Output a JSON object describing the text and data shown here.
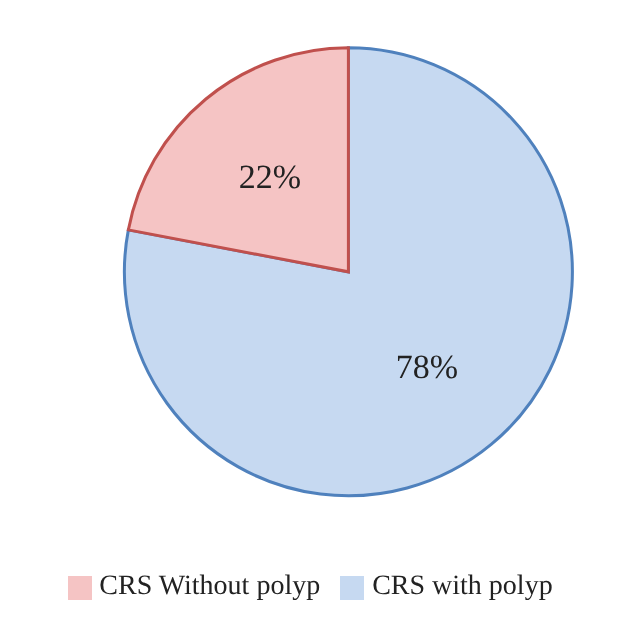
{
  "chart_data": {
    "type": "pie",
    "categories": [
      "CRS with polyp",
      "CRS Without polyp"
    ],
    "values": [
      78,
      22
    ],
    "colors": [
      "#c6d9f1",
      "#f5c4c4"
    ],
    "value_labels": [
      "78%",
      "22%"
    ],
    "legend": "bottom"
  }
}
